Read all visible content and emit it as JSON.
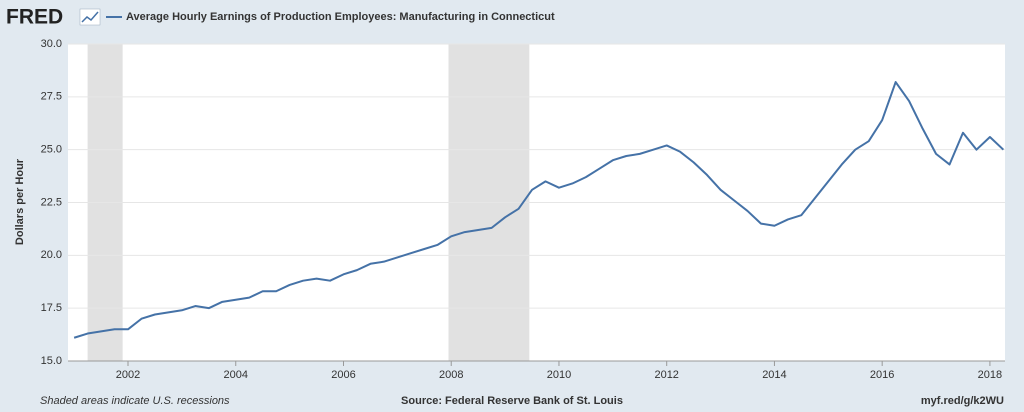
{
  "logo": "FRED",
  "chart_data": {
    "type": "line",
    "ylabel": "Dollars per Hour",
    "x": [
      2001.0,
      2001.25,
      2001.5,
      2001.75,
      2002.0,
      2002.25,
      2002.5,
      2002.75,
      2003.0,
      2003.25,
      2003.5,
      2003.75,
      2004.0,
      2004.25,
      2004.5,
      2004.75,
      2005.0,
      2005.25,
      2005.5,
      2005.75,
      2006.0,
      2006.25,
      2006.5,
      2006.75,
      2007.0,
      2007.25,
      2007.5,
      2007.75,
      2008.0,
      2008.25,
      2008.5,
      2008.75,
      2009.0,
      2009.25,
      2009.5,
      2009.75,
      2010.0,
      2010.25,
      2010.5,
      2010.75,
      2011.0,
      2011.25,
      2011.5,
      2011.75,
      2012.0,
      2012.25,
      2012.5,
      2012.75,
      2013.0,
      2013.25,
      2013.5,
      2013.75,
      2014.0,
      2014.25,
      2014.5,
      2014.75,
      2015.0,
      2015.25,
      2015.5,
      2015.75,
      2016.0,
      2016.25,
      2016.5,
      2016.75,
      2017.0,
      2017.25,
      2017.5,
      2017.75,
      2018.0,
      2018.25
    ],
    "series": [
      {
        "name": "Average Hourly Earnings of Production Employees: Manufacturing in Connecticut",
        "color": "#4572a7",
        "values": [
          16.1,
          16.3,
          16.4,
          16.5,
          16.5,
          17.0,
          17.2,
          17.3,
          17.4,
          17.6,
          17.5,
          17.8,
          17.9,
          18.0,
          18.3,
          18.3,
          18.6,
          18.8,
          18.9,
          18.8,
          19.1,
          19.3,
          19.6,
          19.7,
          19.9,
          20.1,
          20.3,
          20.5,
          20.9,
          21.1,
          21.2,
          21.3,
          21.8,
          22.2,
          23.1,
          23.5,
          23.2,
          23.4,
          23.7,
          24.1,
          24.5,
          24.7,
          24.8,
          25.0,
          25.2,
          24.9,
          24.4,
          23.8,
          23.1,
          22.6,
          22.1,
          21.5,
          21.4,
          21.7,
          21.9,
          22.7,
          23.5,
          24.3,
          25.0,
          25.4,
          26.4,
          28.2,
          27.3,
          26.0,
          24.8,
          24.3,
          25.8,
          25.0,
          25.6,
          25.0
        ]
      }
    ],
    "recessions": [
      [
        2001.25,
        2001.9
      ],
      [
        2007.95,
        2009.45
      ]
    ],
    "xlim": [
      2000.886,
      2018.28
    ],
    "xticks": [
      2002,
      2004,
      2006,
      2008,
      2010,
      2012,
      2014,
      2016,
      2018
    ],
    "ylim": [
      15,
      30
    ],
    "yticks": [
      {
        "value": 15,
        "label": "15.0"
      },
      17.5,
      {
        "value": 20,
        "label": "20.0"
      },
      22.5,
      {
        "value": 25,
        "label": "25.0"
      },
      27.5,
      {
        "value": 30,
        "label": "30.0"
      }
    ],
    "grid": true,
    "footnote": "Shaded areas indicate U.S. recessions",
    "source": "Source: Federal Reserve Bank of St. Louis",
    "link": "myf.red/g/k2WU"
  }
}
